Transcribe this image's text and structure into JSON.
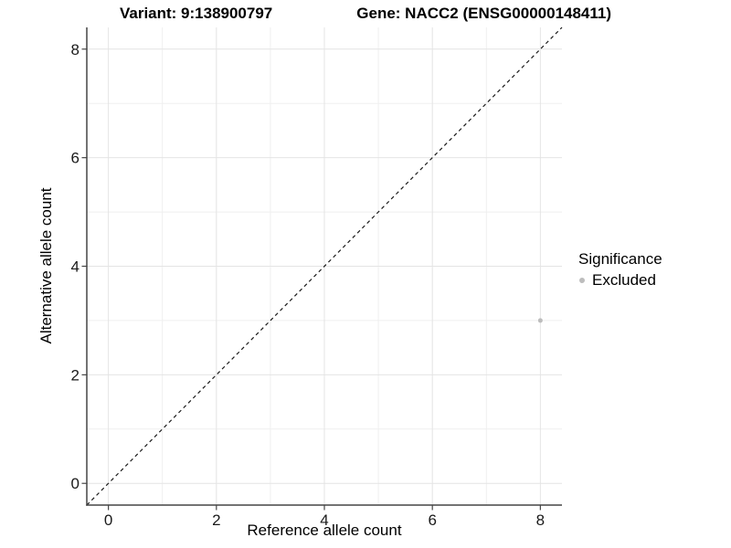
{
  "header": {
    "variant_title": "Variant: 9:138900797",
    "gene_title": "Gene: NACC2 (ENSG00000148411)"
  },
  "legend": {
    "title": "Significance",
    "items": [
      {
        "label": "Excluded",
        "color": "#bdbdbd"
      }
    ]
  },
  "chart_data": {
    "type": "scatter",
    "title": "Variant: 9:138900797   Gene: NACC2 (ENSG00000148411)",
    "xlabel": "Reference allele count",
    "ylabel": "Alternative allele count",
    "xlim": [
      -0.4,
      8.4
    ],
    "ylim": [
      -0.4,
      8.4
    ],
    "x_ticks": [
      0,
      2,
      4,
      6,
      8
    ],
    "y_ticks": [
      0,
      2,
      4,
      6,
      8
    ],
    "x_minor_ticks": [
      1,
      3,
      5,
      7
    ],
    "y_minor_ticks": [
      1,
      3,
      5,
      7
    ],
    "grid": true,
    "legend_position": "right",
    "series": [
      {
        "name": "Excluded",
        "color": "#bdbdbd",
        "points": [
          {
            "x": 8,
            "y": 3
          }
        ]
      }
    ],
    "reference_line": {
      "type": "identity",
      "style": "dashed",
      "color": "#1a1a1a"
    }
  },
  "colors": {
    "background": "#ffffff",
    "grid_major": "#e4e4e4",
    "grid_minor": "#efefef",
    "axis": "#454545",
    "tick_text": "#1a1a1a",
    "point": "#bdbdbd"
  }
}
